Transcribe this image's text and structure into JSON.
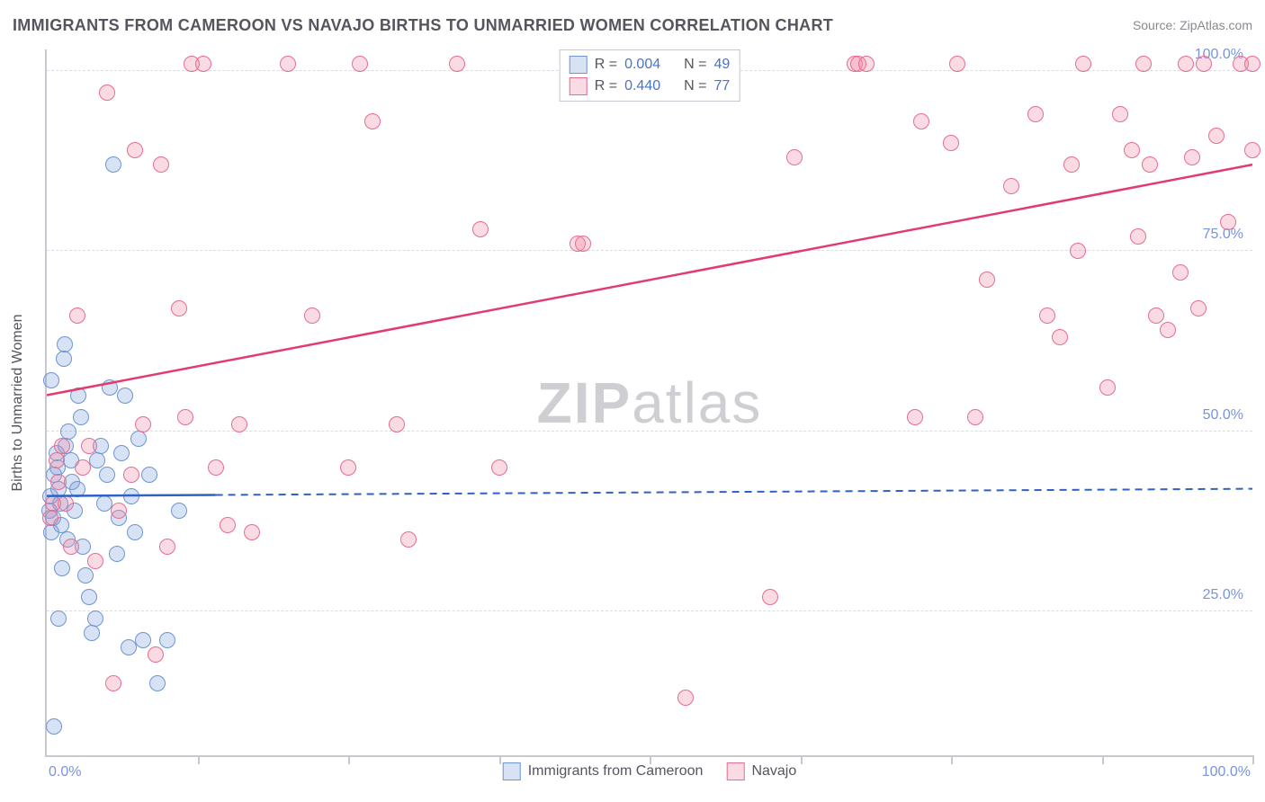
{
  "title": "IMMIGRANTS FROM CAMEROON VS NAVAJO BIRTHS TO UNMARRIED WOMEN CORRELATION CHART",
  "source": "Source: ZipAtlas.com",
  "watermark_a": "ZIP",
  "watermark_b": "atlas",
  "chart": {
    "type": "scatter",
    "x_axis": {
      "min": 0,
      "max": 100,
      "min_label": "0.0%",
      "max_label": "100.0%",
      "tick_positions": [
        12.5,
        25,
        37.5,
        50,
        62.5,
        75,
        87.5,
        100
      ]
    },
    "y_axis": {
      "title": "Births to Unmarried Women",
      "min": 5,
      "max": 103,
      "gridlines": [
        25,
        50,
        75,
        100
      ],
      "labels": {
        "25": "25.0%",
        "50": "50.0%",
        "75": "75.0%",
        "100": "100.0%"
      }
    },
    "marker_radius": 9,
    "marker_border_width": 1.8,
    "background_color": "#ffffff",
    "grid_color": "#dcdce2",
    "axis_color": "#c8c8d0",
    "series": [
      {
        "name": "Immigrants from Cameroon",
        "fill": "rgba(121,160,220,0.30)",
        "stroke": "#6f95d2",
        "trend": {
          "y_at_xmin": 41.0,
          "y_at_xmax": 42.0,
          "color": "#2f62c2",
          "width": 2.5,
          "solid_until_x": 14
        },
        "R": "0.004",
        "N": "49",
        "points": [
          [
            0.2,
            39
          ],
          [
            0.3,
            41
          ],
          [
            0.4,
            36
          ],
          [
            0.5,
            38
          ],
          [
            0.6,
            44
          ],
          [
            0.8,
            47
          ],
          [
            0.9,
            45
          ],
          [
            1.0,
            42
          ],
          [
            1.1,
            40
          ],
          [
            1.2,
            37
          ],
          [
            1.4,
            60
          ],
          [
            1.5,
            62
          ],
          [
            1.6,
            48
          ],
          [
            1.8,
            50
          ],
          [
            2.0,
            46
          ],
          [
            2.1,
            43
          ],
          [
            2.3,
            39
          ],
          [
            2.5,
            42
          ],
          [
            2.6,
            55
          ],
          [
            2.8,
            52
          ],
          [
            3.0,
            34
          ],
          [
            3.2,
            30
          ],
          [
            3.5,
            27
          ],
          [
            3.7,
            22
          ],
          [
            4.0,
            24
          ],
          [
            4.2,
            46
          ],
          [
            4.5,
            48
          ],
          [
            4.8,
            40
          ],
          [
            5.0,
            44
          ],
          [
            5.2,
            56
          ],
          [
            5.5,
            87
          ],
          [
            5.8,
            33
          ],
          [
            6.0,
            38
          ],
          [
            6.2,
            47
          ],
          [
            6.5,
            55
          ],
          [
            6.8,
            20
          ],
          [
            7.0,
            41
          ],
          [
            7.3,
            36
          ],
          [
            7.6,
            49
          ],
          [
            8.0,
            21
          ],
          [
            8.5,
            44
          ],
          [
            9.2,
            15
          ],
          [
            10.0,
            21
          ],
          [
            11.0,
            39
          ],
          [
            0.6,
            9
          ],
          [
            1.0,
            24
          ],
          [
            1.3,
            31
          ],
          [
            1.7,
            35
          ],
          [
            0.4,
            57
          ]
        ]
      },
      {
        "name": "Navajo",
        "fill": "rgba(238,133,163,0.30)",
        "stroke": "#e56e93",
        "trend": {
          "y_at_xmin": 55.0,
          "y_at_xmax": 87.0,
          "color": "#e23b72",
          "width": 2.5,
          "solid_until_x": 100
        },
        "R": "0.440",
        "N": "77",
        "points": [
          [
            0.3,
            38
          ],
          [
            0.5,
            40
          ],
          [
            0.8,
            46
          ],
          [
            1.0,
            43
          ],
          [
            1.3,
            48
          ],
          [
            1.6,
            40
          ],
          [
            2.0,
            34
          ],
          [
            2.5,
            66
          ],
          [
            3.0,
            45
          ],
          [
            3.5,
            48
          ],
          [
            4.0,
            32
          ],
          [
            5.0,
            97
          ],
          [
            5.5,
            15
          ],
          [
            6.0,
            39
          ],
          [
            7.0,
            44
          ],
          [
            7.3,
            89
          ],
          [
            8.0,
            51
          ],
          [
            9.0,
            19
          ],
          [
            9.5,
            87
          ],
          [
            10.0,
            34
          ],
          [
            11.0,
            67
          ],
          [
            11.5,
            52
          ],
          [
            12.0,
            101
          ],
          [
            13.0,
            101
          ],
          [
            14.0,
            45
          ],
          [
            15.0,
            37
          ],
          [
            16.0,
            51
          ],
          [
            17.0,
            36
          ],
          [
            20.0,
            101
          ],
          [
            22.0,
            66
          ],
          [
            25.0,
            45
          ],
          [
            26.0,
            101
          ],
          [
            27.0,
            93
          ],
          [
            29.0,
            51
          ],
          [
            30.0,
            35
          ],
          [
            34.0,
            101
          ],
          [
            36.0,
            78
          ],
          [
            37.5,
            45
          ],
          [
            44.0,
            76
          ],
          [
            44.5,
            76
          ],
          [
            53.0,
            13
          ],
          [
            60.0,
            27
          ],
          [
            62.0,
            88
          ],
          [
            67.0,
            101
          ],
          [
            67.3,
            101
          ],
          [
            68.0,
            101
          ],
          [
            72.0,
            52
          ],
          [
            72.5,
            93
          ],
          [
            75.0,
            90
          ],
          [
            75.5,
            101
          ],
          [
            77.0,
            52
          ],
          [
            78.0,
            71
          ],
          [
            80.0,
            84
          ],
          [
            82.0,
            94
          ],
          [
            83.0,
            66
          ],
          [
            84.0,
            63
          ],
          [
            85.0,
            87
          ],
          [
            85.5,
            75
          ],
          [
            86.0,
            101
          ],
          [
            88.0,
            56
          ],
          [
            89.0,
            94
          ],
          [
            90.0,
            89
          ],
          [
            90.5,
            77
          ],
          [
            91.0,
            101
          ],
          [
            91.5,
            87
          ],
          [
            92.0,
            66
          ],
          [
            93.0,
            64
          ],
          [
            94.0,
            72
          ],
          [
            94.5,
            101
          ],
          [
            95.0,
            88
          ],
          [
            95.5,
            67
          ],
          [
            96.0,
            101
          ],
          [
            97.0,
            91
          ],
          [
            98.0,
            79
          ],
          [
            99.0,
            101
          ],
          [
            100.0,
            89
          ],
          [
            100.0,
            101
          ]
        ]
      }
    ]
  },
  "legend_top": {
    "label_R": "R =",
    "label_N": "N ="
  }
}
